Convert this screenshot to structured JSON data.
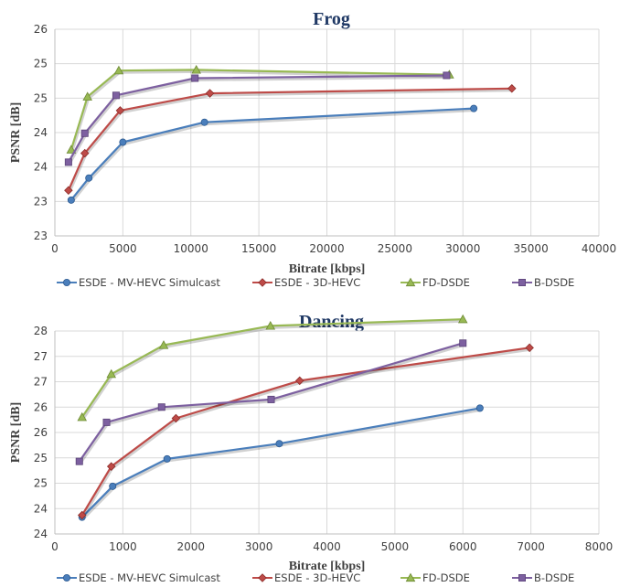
{
  "chart_data": [
    {
      "type": "line",
      "title": "Frog",
      "xlabel": "Bitrate [kbps]",
      "ylabel": "PSNR [dB]",
      "xlim": [
        0,
        40000
      ],
      "ylim": [
        23,
        26
      ],
      "x_ticks": [
        0,
        5000,
        10000,
        15000,
        20000,
        25000,
        30000,
        35000,
        40000
      ],
      "x_tick_labels": [
        "0",
        "5000",
        "10000",
        "15000",
        "20000",
        "25000",
        "30000",
        "35000",
        "40000"
      ],
      "y_ticks": [
        23,
        23.5,
        24,
        24.5,
        25,
        25.5,
        26
      ],
      "y_tick_labels": [
        "23",
        "23",
        "24",
        "24",
        "25",
        "25",
        "26"
      ],
      "grid": true,
      "legend_position": "bottom",
      "series": [
        {
          "name": "ESDE - MV-HEVC Simulcast",
          "color": "#4a7ebb",
          "marker": "circle",
          "x": [
            1200,
            2500,
            5000,
            11000,
            30800
          ],
          "y": [
            23.52,
            23.84,
            24.36,
            24.65,
            24.85
          ]
        },
        {
          "name": "ESDE - 3D-HEVC",
          "color": "#be4b48",
          "marker": "diamond",
          "x": [
            1000,
            2200,
            4800,
            11400,
            33600
          ],
          "y": [
            23.66,
            24.2,
            24.82,
            25.07,
            25.14
          ]
        },
        {
          "name": "FD-DSDE",
          "color": "#98b954",
          "marker": "triangle",
          "x": [
            1200,
            2400,
            4700,
            10400,
            29000
          ],
          "y": [
            24.25,
            25.02,
            25.4,
            25.41,
            25.34
          ]
        },
        {
          "name": "B-DSDE",
          "color": "#7d60a0",
          "marker": "square",
          "x": [
            1000,
            2200,
            4500,
            10300,
            28800
          ],
          "y": [
            24.07,
            24.49,
            25.04,
            25.29,
            25.33
          ]
        }
      ]
    },
    {
      "type": "line",
      "title": "Dancing",
      "xlabel": "Bitrate [kbps]",
      "ylabel": "PSNR [dB]",
      "xlim": [
        0,
        8000
      ],
      "ylim": [
        24,
        28
      ],
      "x_ticks": [
        0,
        1000,
        2000,
        3000,
        4000,
        5000,
        6000,
        7000,
        8000
      ],
      "x_tick_labels": [
        "0",
        "1000",
        "2000",
        "3000",
        "4000",
        "5000",
        "6000",
        "7000",
        "8000"
      ],
      "y_ticks": [
        24,
        24.5,
        25,
        25.5,
        26,
        26.5,
        27,
        27.5,
        28
      ],
      "y_tick_labels": [
        "24",
        "24",
        "25",
        "25",
        "26",
        "26",
        "27",
        "27",
        "28"
      ],
      "grid": true,
      "legend_position": "bottom",
      "series": [
        {
          "name": "ESDE - MV-HEVC Simulcast",
          "color": "#4a7ebb",
          "marker": "circle",
          "x": [
            400,
            850,
            1650,
            3300,
            6250
          ],
          "y": [
            24.33,
            24.94,
            25.48,
            25.78,
            26.48
          ]
        },
        {
          "name": "ESDE - 3D-HEVC",
          "color": "#be4b48",
          "marker": "diamond",
          "x": [
            400,
            830,
            1780,
            3600,
            6980
          ],
          "y": [
            24.37,
            25.33,
            26.28,
            27.02,
            27.67
          ]
        },
        {
          "name": "FD-DSDE",
          "color": "#98b954",
          "marker": "triangle",
          "x": [
            400,
            830,
            1600,
            3170,
            6000
          ],
          "y": [
            26.3,
            27.15,
            27.72,
            28.1,
            28.23
          ]
        },
        {
          "name": "B-DSDE",
          "color": "#7d60a0",
          "marker": "square",
          "x": [
            360,
            760,
            1570,
            3180,
            6000
          ],
          "y": [
            25.43,
            26.2,
            26.5,
            26.65,
            27.76
          ]
        }
      ]
    }
  ]
}
